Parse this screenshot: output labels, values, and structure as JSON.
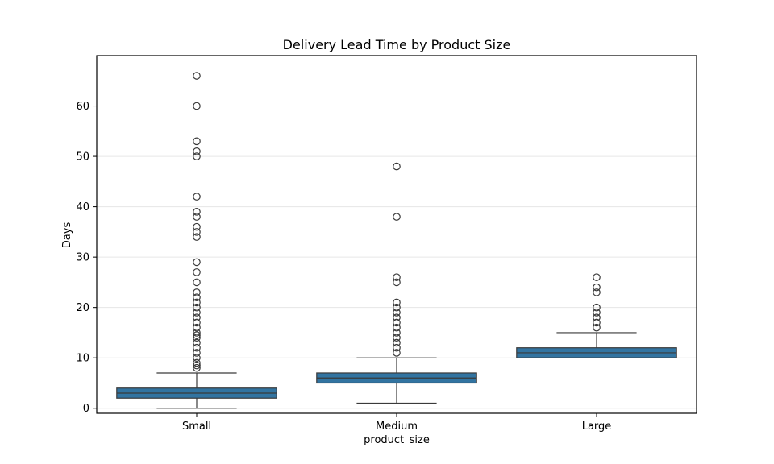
{
  "chart_data": {
    "type": "box",
    "title": "Delivery Lead Time by Product Size",
    "xlabel": "product_size",
    "ylabel": "Days",
    "categories": [
      "Small",
      "Medium",
      "Large"
    ],
    "ylim": [
      -1,
      70
    ],
    "yticks": [
      0,
      10,
      20,
      30,
      40,
      50,
      60
    ],
    "grid": "horizontal",
    "box_color": "#3274a1",
    "boxes": [
      {
        "category": "Small",
        "whisker_low": 0,
        "q1": 2,
        "median": 3,
        "q3": 4,
        "whisker_high": 7,
        "outliers": [
          8,
          8.5,
          9,
          10,
          11,
          12,
          13,
          14,
          14.5,
          15,
          16,
          17,
          18,
          19,
          20,
          21,
          22,
          23,
          25,
          27,
          29,
          34,
          35,
          36,
          38,
          39,
          42,
          50,
          51,
          53,
          60,
          66
        ]
      },
      {
        "category": "Medium",
        "whisker_low": 1,
        "q1": 5,
        "median": 6,
        "q3": 7,
        "whisker_high": 10,
        "outliers": [
          11,
          12,
          13,
          14,
          15,
          16,
          17,
          18,
          19,
          20,
          21,
          25,
          26,
          38,
          48
        ]
      },
      {
        "category": "Large",
        "whisker_low": 10,
        "q1": 10,
        "median": 11,
        "q3": 12,
        "whisker_high": 15,
        "outliers": [
          16,
          17,
          18,
          19,
          20,
          23,
          24,
          26
        ]
      }
    ]
  }
}
